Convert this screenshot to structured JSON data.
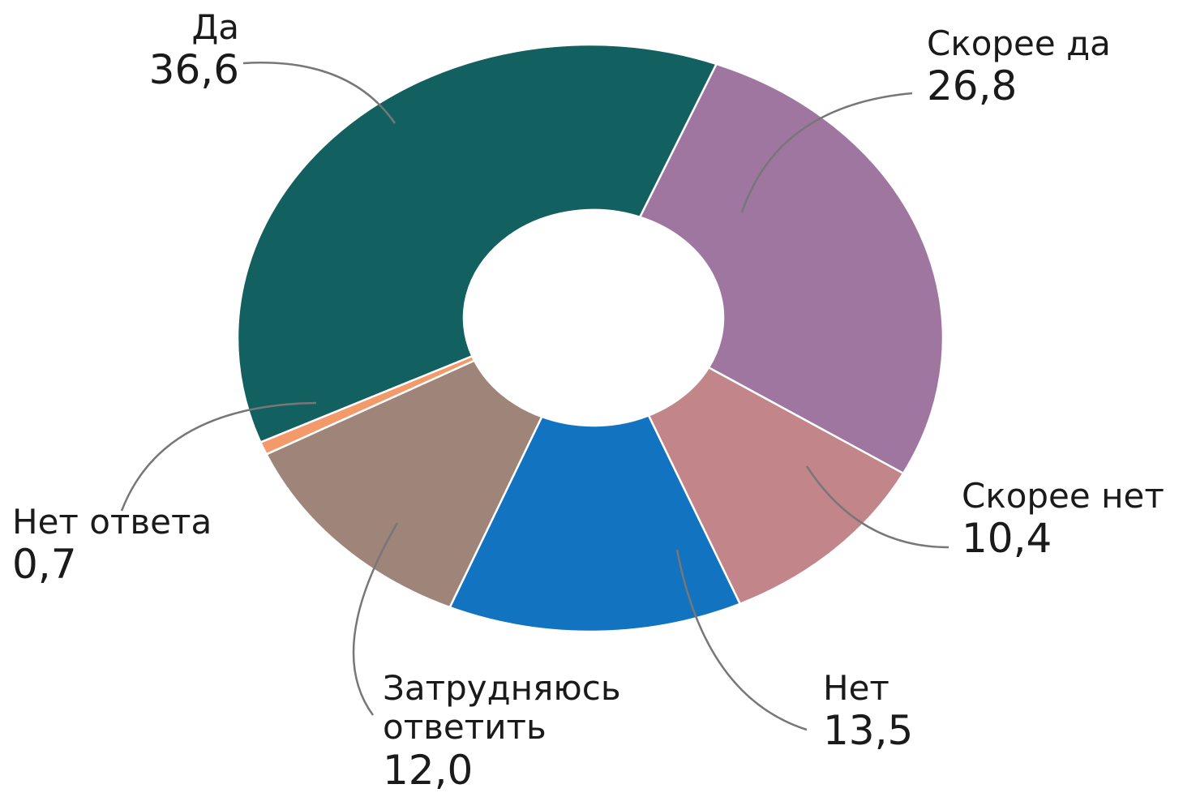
{
  "chart_data": {
    "type": "donut",
    "categories": [
      "Да",
      "Скорее да",
      "Скорее нет",
      "Нет",
      "Затрудняюсь ответить",
      "Нет ответа"
    ],
    "values": [
      36.6,
      26.8,
      10.4,
      13.5,
      12.0,
      0.7
    ],
    "value_labels": [
      "36,6",
      "26,8",
      "10,4",
      "13,5",
      "12,0",
      "0,7"
    ],
    "colors": [
      "#12605f",
      "#9e76a0",
      "#c2858a",
      "#1273c0",
      "#9e8479",
      "#f29a6a"
    ]
  }
}
